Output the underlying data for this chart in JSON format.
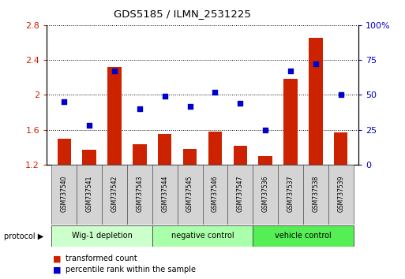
{
  "title": "GDS5185 / ILMN_2531225",
  "samples": [
    "GSM737540",
    "GSM737541",
    "GSM737542",
    "GSM737543",
    "GSM737544",
    "GSM737545",
    "GSM737546",
    "GSM737547",
    "GSM737536",
    "GSM737537",
    "GSM737538",
    "GSM737539"
  ],
  "transformed_count": [
    1.5,
    1.37,
    2.32,
    1.43,
    1.55,
    1.38,
    1.58,
    1.42,
    1.3,
    2.18,
    2.65,
    1.57
  ],
  "percentile_rank": [
    45,
    28,
    67,
    40,
    49,
    42,
    52,
    44,
    25,
    67,
    72,
    50
  ],
  "bar_color": "#cc2200",
  "dot_color": "#0000cc",
  "ylim_left": [
    1.2,
    2.8
  ],
  "ylim_right": [
    0,
    100
  ],
  "yticks_left": [
    1.2,
    1.6,
    2.0,
    2.4,
    2.8
  ],
  "yticks_right": [
    0,
    25,
    50,
    75,
    100
  ],
  "ytick_labels_right": [
    "0",
    "25",
    "50",
    "75",
    "100%"
  ],
  "groups": [
    {
      "label": "Wig-1 depletion",
      "start": 0,
      "end": 4,
      "color": "#ccffcc"
    },
    {
      "label": "negative control",
      "start": 4,
      "end": 8,
      "color": "#aaffaa"
    },
    {
      "label": "vehicle control",
      "start": 8,
      "end": 12,
      "color": "#55ee55"
    }
  ],
  "protocol_label": "protocol",
  "legend_bar_label": "transformed count",
  "legend_dot_label": "percentile rank within the sample",
  "grid_color": "#000000",
  "background_color": "#ffffff",
  "bar_bottom": 1.2,
  "tick_label_color_left": "#cc2200",
  "tick_label_color_right": "#0000cc",
  "bar_width": 0.55
}
